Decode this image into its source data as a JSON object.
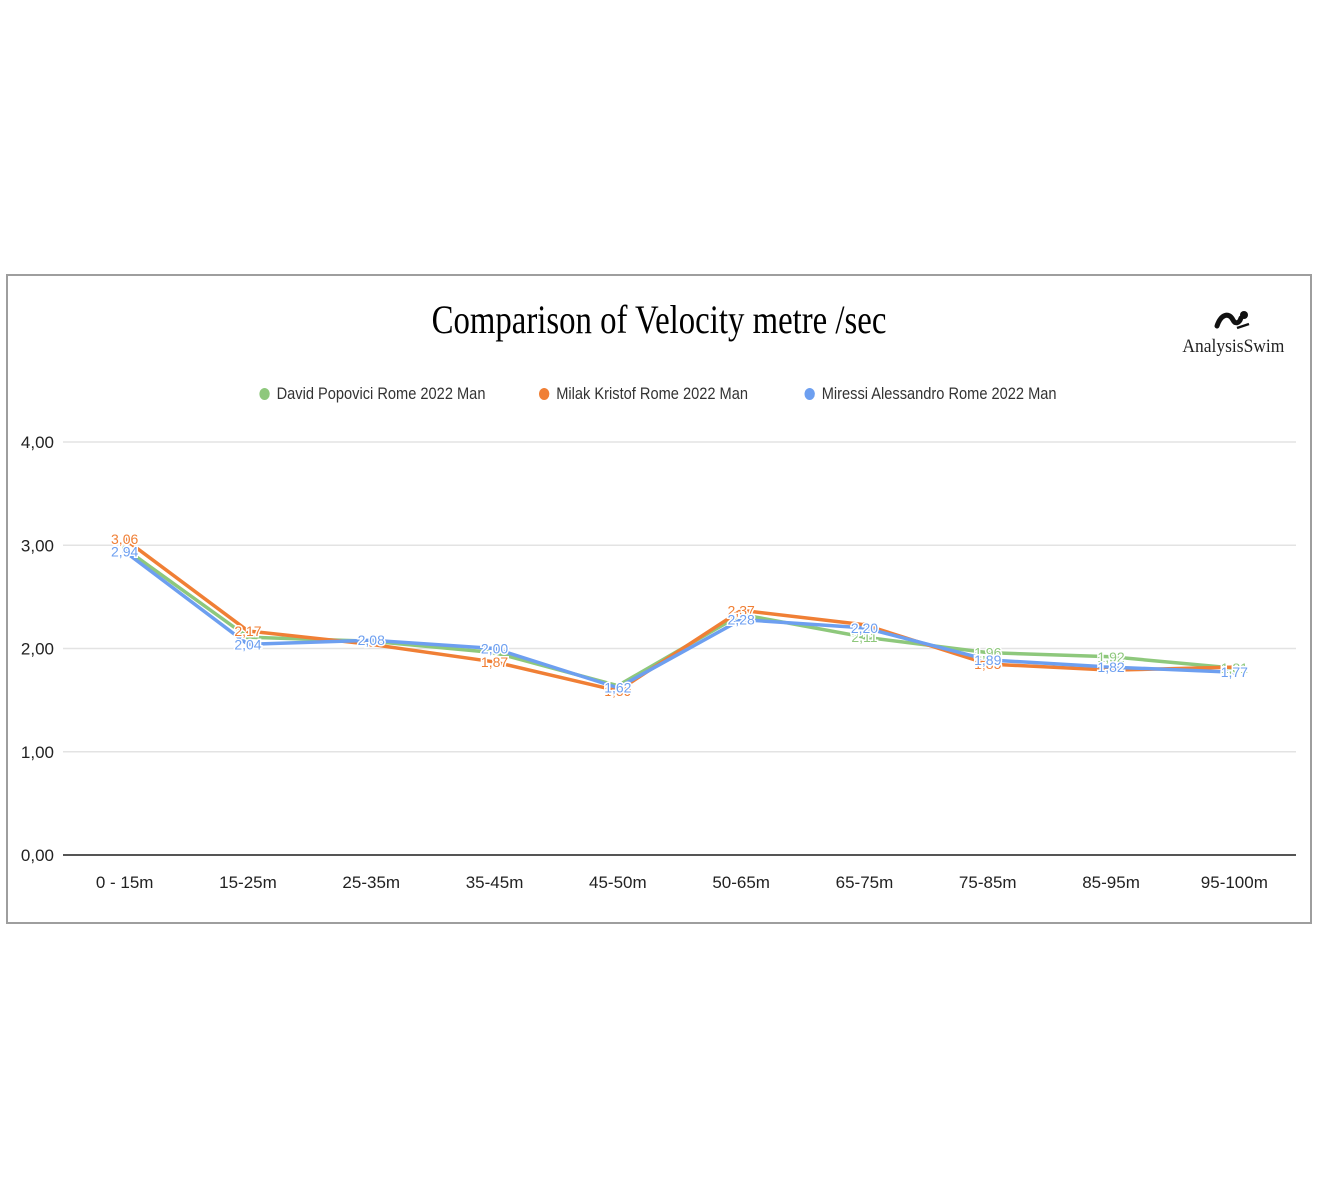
{
  "chart_data": {
    "type": "line",
    "title": "Comparison of Velocity metre /sec",
    "categories": [
      "0 - 15m",
      "15-25m",
      "25-35m",
      "35-45m",
      "45-50m",
      "50-65m",
      "65-75m",
      "75-85m",
      "85-95m",
      "95-100m"
    ],
    "series": [
      {
        "name": "David Popovici Rome 2022 Man",
        "color": "#8ec87c",
        "values": [
          2.97,
          2.11,
          2.07,
          1.96,
          1.64,
          2.33,
          2.11,
          1.96,
          1.92,
          1.81
        ],
        "labels": [
          "",
          "",
          "",
          "",
          "",
          "",
          "2,11",
          "1,96",
          "1,92",
          "1,81"
        ]
      },
      {
        "name": "Milak Kristof Rome 2022 Man",
        "color": "#f07f35",
        "values": [
          3.06,
          2.17,
          2.04,
          1.87,
          1.59,
          2.37,
          2.23,
          1.85,
          1.79,
          1.82
        ],
        "labels": [
          "3,06",
          "2,17",
          "",
          "1,87",
          "1,59",
          "2,37",
          "",
          "1,85",
          "",
          ""
        ]
      },
      {
        "name": "Miressi Alessandro Rome 2022 Man",
        "color": "#6d9ff0",
        "values": [
          2.94,
          2.04,
          2.08,
          2.0,
          1.62,
          2.28,
          2.2,
          1.89,
          1.82,
          1.77
        ],
        "labels": [
          "2,94",
          "2,04",
          "2,08",
          "2,00",
          "1,62",
          "2,28",
          "2,20",
          "1,89",
          "1,82",
          "1,77"
        ]
      }
    ],
    "y_ticks": [
      "0,00",
      "1,00",
      "2,00",
      "3,00",
      "4,00"
    ],
    "ylim": [
      0,
      4
    ],
    "grid": true,
    "legend": "top"
  },
  "logo": {
    "text": "AnalysisSwim",
    "icon": "swimmer-icon"
  }
}
